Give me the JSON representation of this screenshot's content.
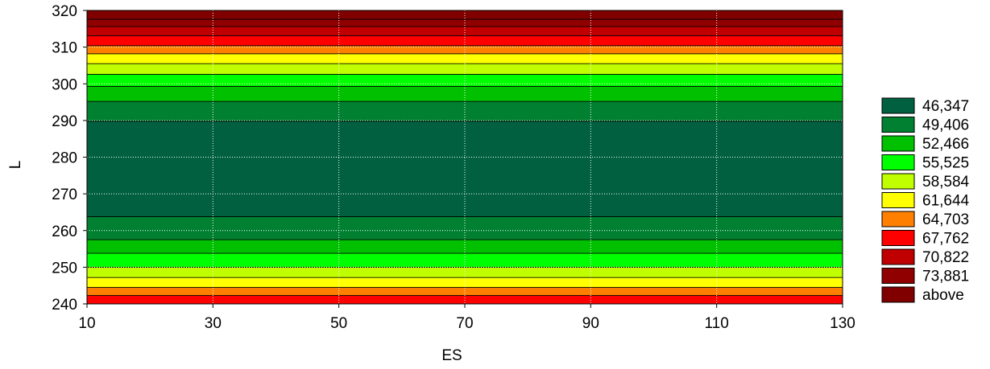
{
  "chart_data": {
    "type": "heatmap",
    "xlabel": "ES",
    "ylabel": "L",
    "xlim": [
      10,
      130
    ],
    "ylim": [
      240,
      320
    ],
    "x_ticks": [
      "10",
      "30",
      "50",
      "70",
      "90",
      "110",
      "130"
    ],
    "y_ticks": [
      "240",
      "250",
      "260",
      "270",
      "280",
      "290",
      "300",
      "310",
      "320"
    ],
    "x_tick_values": [
      10,
      30,
      50,
      70,
      90,
      110,
      130
    ],
    "y_tick_values": [
      240,
      250,
      260,
      270,
      280,
      290,
      300,
      310,
      320
    ],
    "grid": true,
    "legend_placement": "right",
    "legend": [
      {
        "label": "46,347",
        "color": "#006040"
      },
      {
        "label": "49,406",
        "color": "#008030"
      },
      {
        "label": "52,466",
        "color": "#00c000"
      },
      {
        "label": "55,525",
        "color": "#00ff00"
      },
      {
        "label": "58,584",
        "color": "#c0ff00"
      },
      {
        "label": "61,644",
        "color": "#ffff00"
      },
      {
        "label": "64,703",
        "color": "#ff8000"
      },
      {
        "label": "67,762",
        "color": "#ff0000"
      },
      {
        "label": "70,822",
        "color": "#c00000"
      },
      {
        "label": "73,881",
        "color": "#900000"
      },
      {
        "label": "above",
        "color": "#800000"
      }
    ],
    "bands": [
      {
        "y0": 240,
        "y1": 242.3,
        "level": 7
      },
      {
        "y0": 242.3,
        "y1": 244.5,
        "level": 6
      },
      {
        "y0": 244.5,
        "y1": 247.2,
        "level": 5
      },
      {
        "y0": 247.2,
        "y1": 250.0,
        "level": 4
      },
      {
        "y0": 250.0,
        "y1": 253.8,
        "level": 3
      },
      {
        "y0": 253.8,
        "y1": 257.5,
        "level": 2
      },
      {
        "y0": 257.5,
        "y1": 263.8,
        "level": 1
      },
      {
        "y0": 263.8,
        "y1": 289.8,
        "level": 0
      },
      {
        "y0": 289.8,
        "y1": 295.2,
        "level": 1
      },
      {
        "y0": 295.2,
        "y1": 299.3,
        "level": 2
      },
      {
        "y0": 299.3,
        "y1": 302.6,
        "level": 3
      },
      {
        "y0": 302.6,
        "y1": 305.5,
        "level": 4
      },
      {
        "y0": 305.5,
        "y1": 308.2,
        "level": 5
      },
      {
        "y0": 308.2,
        "y1": 310.4,
        "level": 6
      },
      {
        "y0": 310.4,
        "y1": 313.1,
        "level": 7
      },
      {
        "y0": 313.1,
        "y1": 315.6,
        "level": 8
      },
      {
        "y0": 315.6,
        "y1": 317.6,
        "level": 9
      },
      {
        "y0": 317.6,
        "y1": 320,
        "level": 10
      }
    ]
  }
}
